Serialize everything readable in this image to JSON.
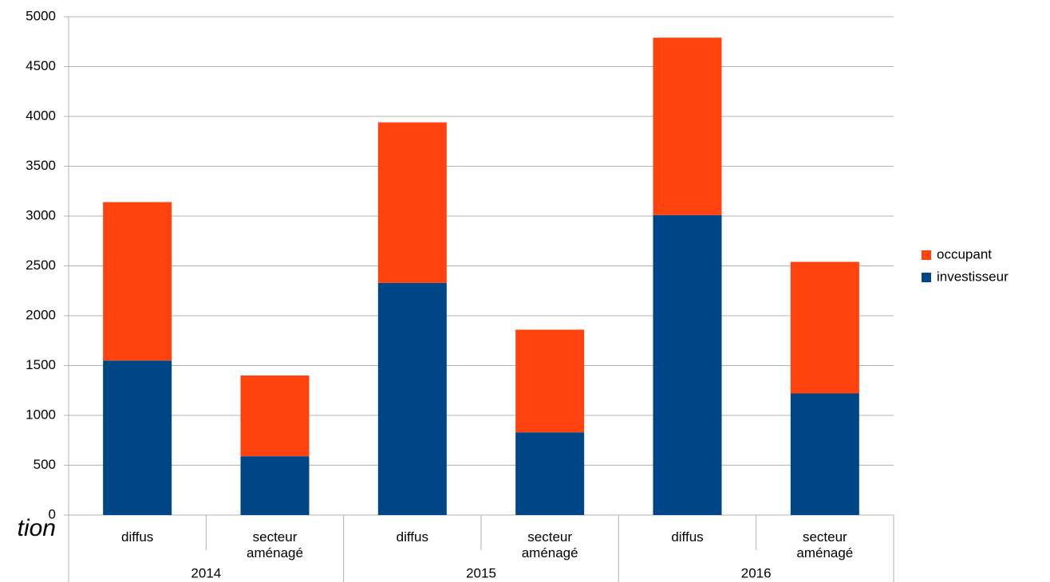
{
  "chart_data": {
    "type": "stacked-bar",
    "categories": [
      "diffus",
      "secteur aménagé",
      "diffus",
      "secteur aménagé",
      "diffus",
      "secteur aménagé"
    ],
    "groups": [
      "2014",
      "2015",
      "2016"
    ],
    "series": [
      {
        "name": "investisseur",
        "color": "#004586",
        "values": [
          1550,
          590,
          2330,
          830,
          3010,
          1220
        ]
      },
      {
        "name": "occupant",
        "color": "#ff420e",
        "values": [
          1590,
          810,
          1610,
          1030,
          1780,
          1320
        ]
      }
    ],
    "ylim": [
      0,
      5000
    ],
    "yticks": [
      0,
      500,
      1000,
      1500,
      2000,
      2500,
      3000,
      3500,
      4000,
      4500,
      5000
    ],
    "grid": true,
    "legend": "right",
    "annotation": "tion"
  }
}
